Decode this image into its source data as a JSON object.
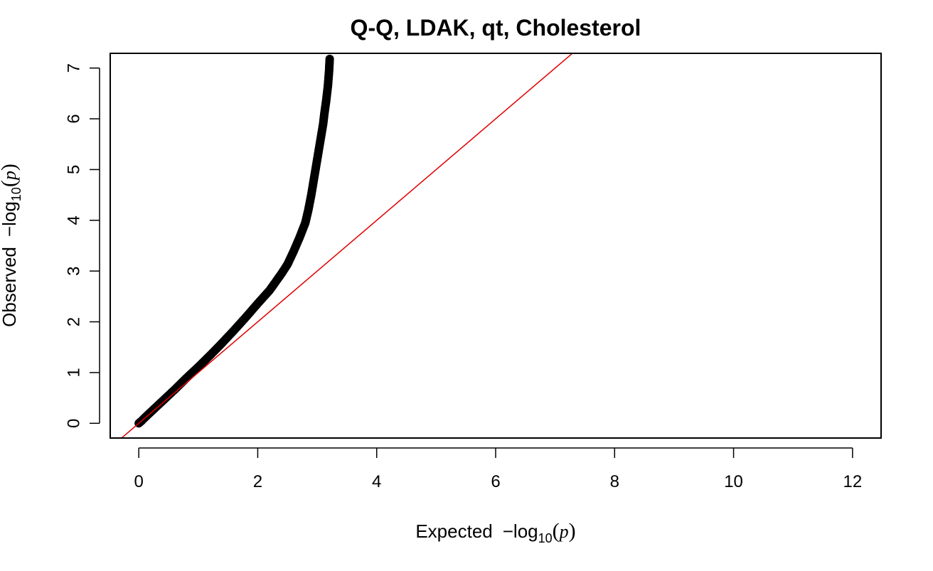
{
  "chart_data": {
    "type": "scatter",
    "title": "Q-Q, LDAK, qt, Cholesterol",
    "xlabel": {
      "prefix": "Expected",
      "minus": "−",
      "log": "log",
      "sub": "10",
      "open": "(",
      "var": "p",
      "close": ")"
    },
    "ylabel": {
      "prefix": "Observed",
      "minus": "−",
      "log": "log",
      "sub": "10",
      "open": "(",
      "var": "p",
      "close": ")"
    },
    "xlim": [
      -0.48,
      12.48
    ],
    "ylim": [
      -0.29,
      7.29
    ],
    "xticks": [
      0,
      2,
      4,
      6,
      8,
      10,
      12
    ],
    "yticks": [
      0,
      1,
      2,
      3,
      4,
      5,
      6,
      7
    ],
    "grid": false,
    "point_color": "#000000",
    "reference_line": {
      "slope": 1,
      "intercept": 0,
      "color": "#e00000"
    },
    "points": {
      "x": [
        0.0,
        0.05,
        0.1,
        0.2,
        0.3,
        0.4,
        0.5,
        0.6,
        0.8,
        1.0,
        1.2,
        1.4,
        1.6,
        1.8,
        2.0,
        2.2,
        2.4,
        2.5,
        2.6,
        2.7,
        2.8,
        2.85,
        2.9,
        2.95,
        3.0,
        3.05,
        3.1,
        3.12,
        3.15,
        3.18,
        3.2,
        3.21
      ],
      "y": [
        0.0,
        0.05,
        0.11,
        0.22,
        0.33,
        0.44,
        0.55,
        0.66,
        0.89,
        1.11,
        1.34,
        1.58,
        1.83,
        2.09,
        2.36,
        2.62,
        2.95,
        3.13,
        3.38,
        3.65,
        3.95,
        4.2,
        4.5,
        4.85,
        5.2,
        5.55,
        5.9,
        6.1,
        6.35,
        6.65,
        6.95,
        7.18
      ]
    }
  }
}
